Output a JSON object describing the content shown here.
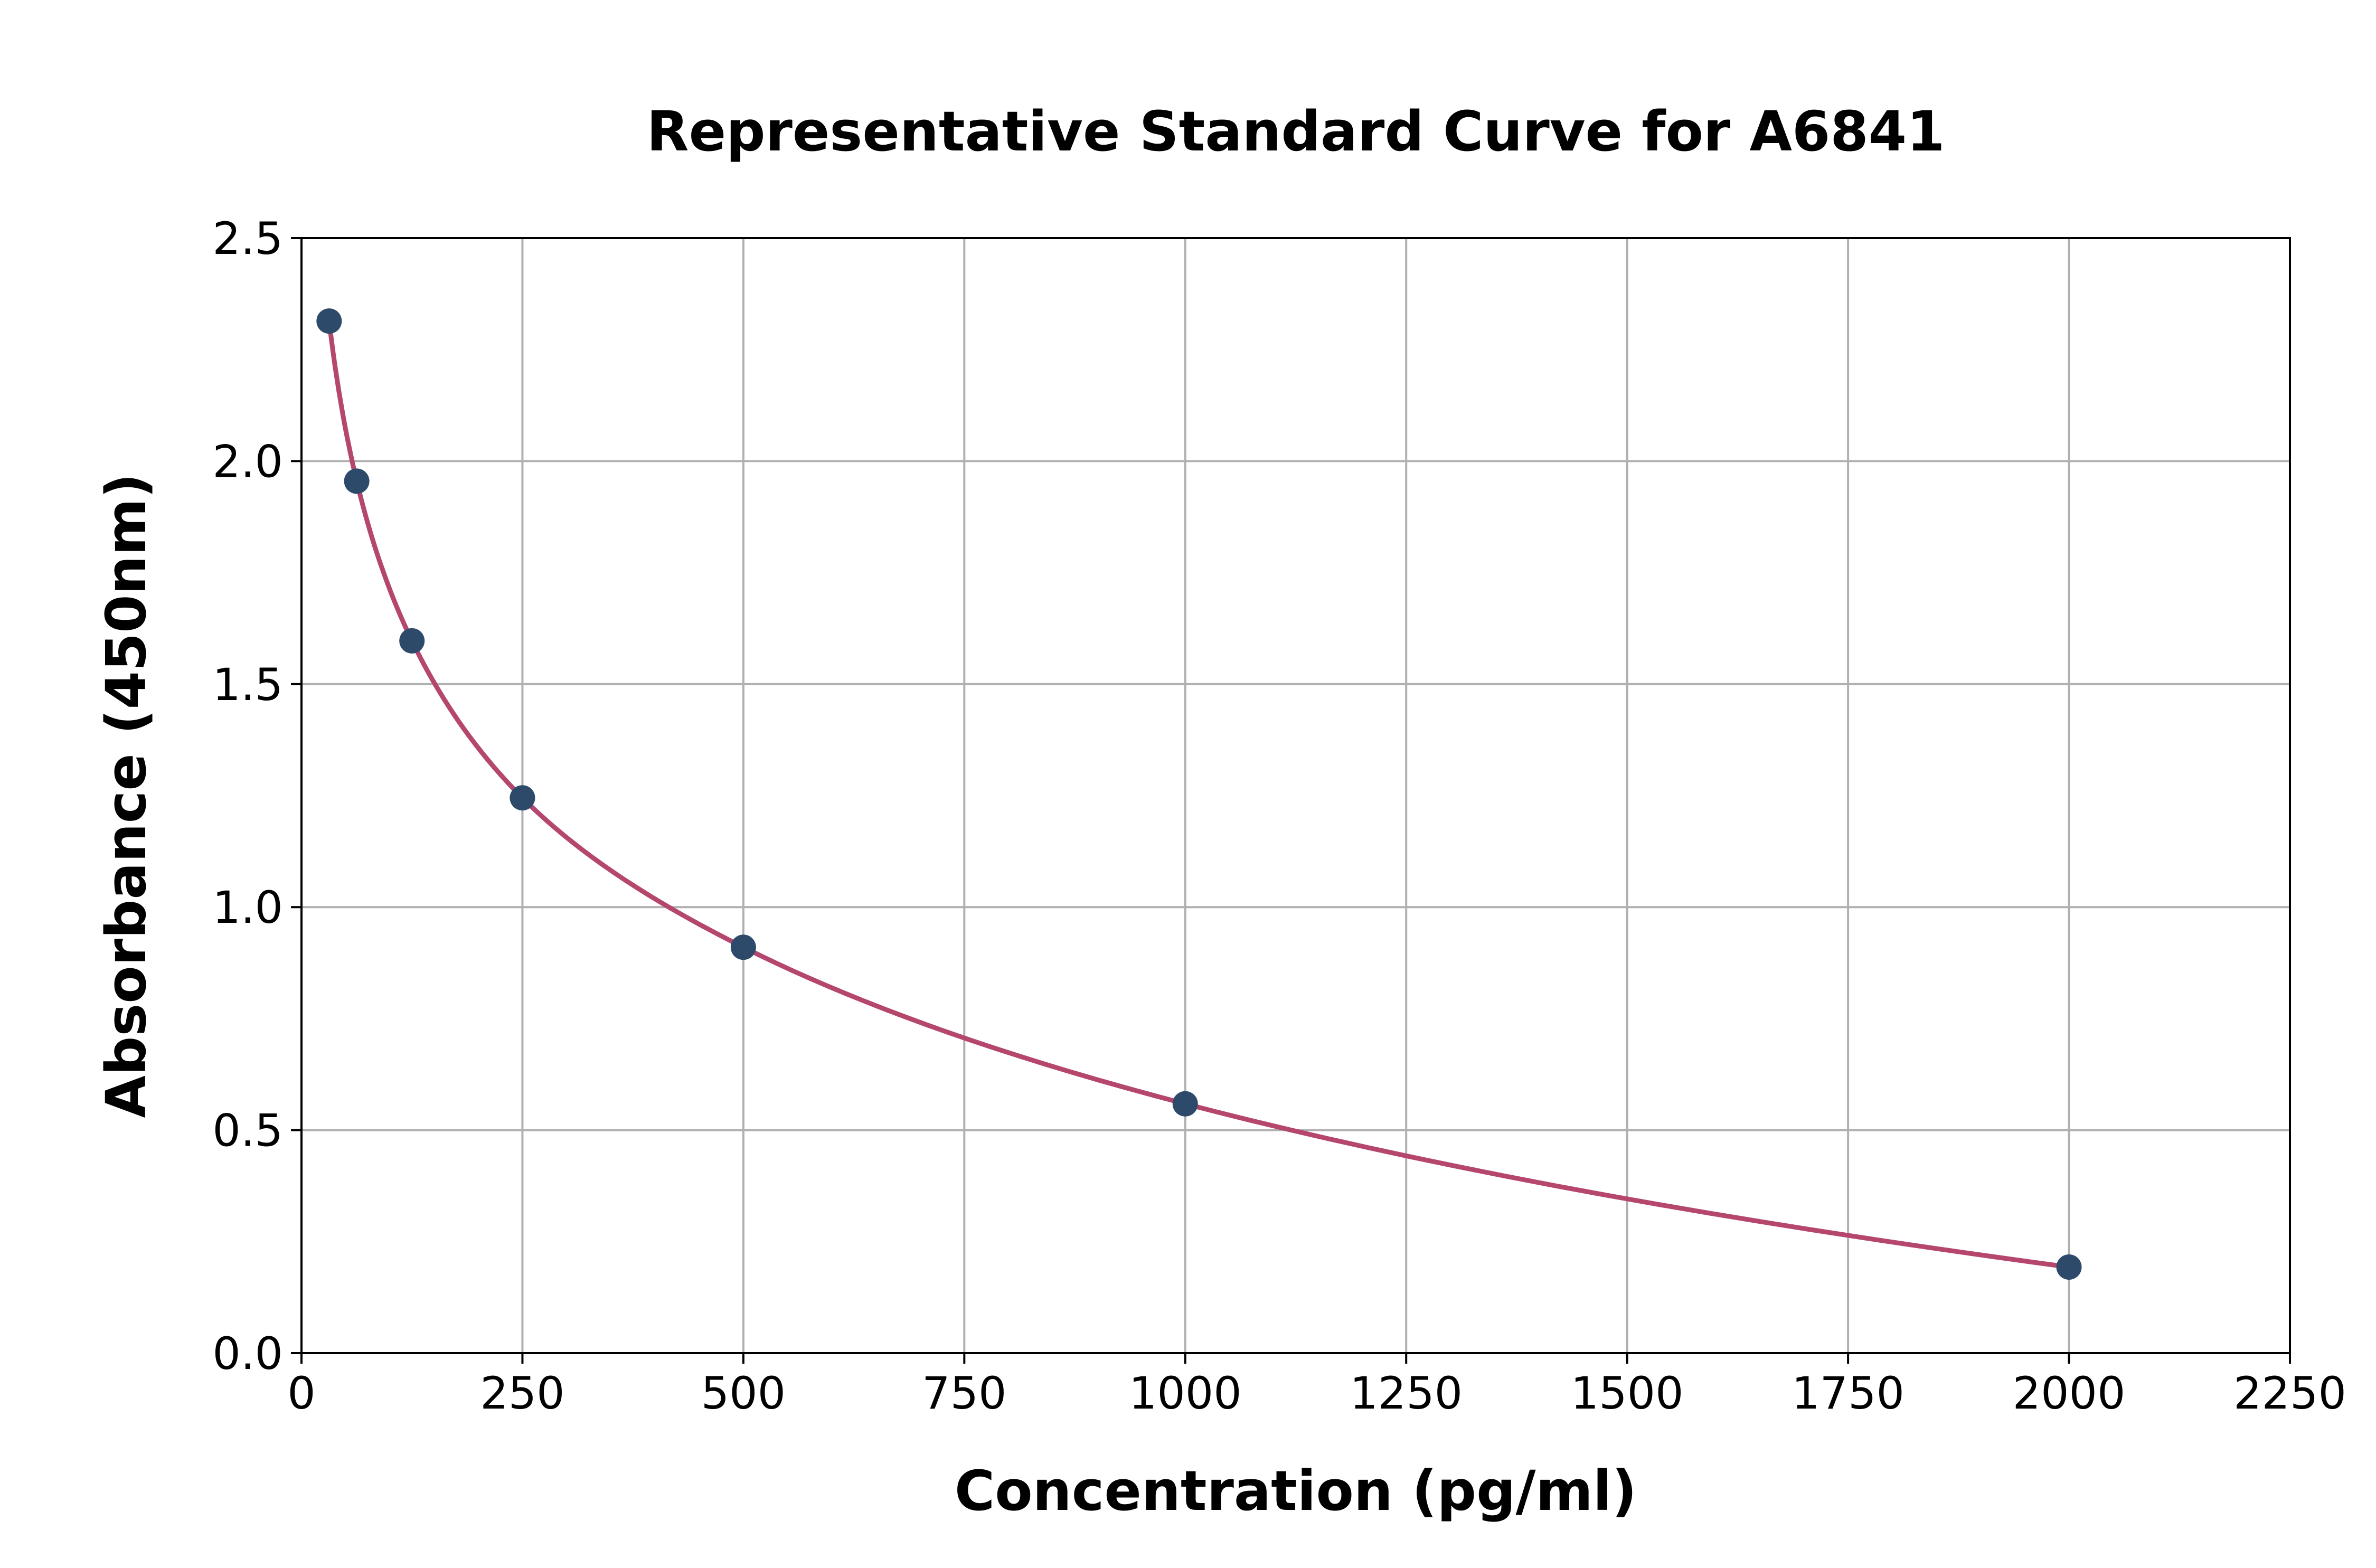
{
  "chart_data": {
    "type": "scatter",
    "title": "Representative Standard Curve for A6841",
    "xlabel": "Concentration (pg/ml)",
    "ylabel": "Absorbance (450nm)",
    "xlim": [
      0,
      2250
    ],
    "ylim": [
      0,
      2.5
    ],
    "xticks": [
      0,
      250,
      500,
      750,
      1000,
      1250,
      1500,
      1750,
      2000,
      2250
    ],
    "yticks": [
      "0.0",
      "0.5",
      "1.0",
      "1.5",
      "2.0",
      "2.5"
    ],
    "grid": true,
    "points": [
      {
        "x": 31.25,
        "y": 2.314
      },
      {
        "x": 62.5,
        "y": 1.955
      },
      {
        "x": 125,
        "y": 1.597
      },
      {
        "x": 250,
        "y": 1.245
      },
      {
        "x": 500,
        "y": 0.91
      },
      {
        "x": 1000,
        "y": 0.559
      },
      {
        "x": 2000,
        "y": 0.193
      }
    ],
    "fit_curve": true,
    "colors": {
      "points": "#2d4a6b",
      "curve": "#b5476e",
      "grid": "#b0b0b0"
    }
  }
}
